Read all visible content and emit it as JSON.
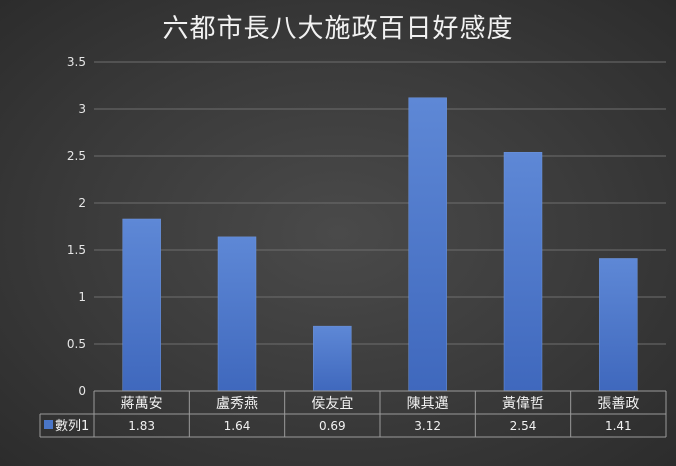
{
  "chart_data": {
    "type": "bar",
    "title": "六都市長八大施政百日好感度",
    "categories": [
      "蔣萬安",
      "盧秀燕",
      "侯友宜",
      "陳其邁",
      "黃偉哲",
      "張善政"
    ],
    "series": [
      {
        "name": "數列1",
        "values": [
          1.83,
          1.64,
          0.69,
          3.12,
          2.54,
          1.41
        ]
      }
    ],
    "value_labels": [
      "1.83",
      "1.64",
      "0.69",
      "3.12",
      "2.54",
      "1.41"
    ],
    "yticks": [
      "0",
      "0.5",
      "1",
      "1.5",
      "2",
      "2.5",
      "3",
      "3.5"
    ],
    "ylim": [
      0,
      3.5
    ],
    "grid": true,
    "legend": "data-table-bottom",
    "colors": {
      "bar": "#4a76c8",
      "bar_light": "#5f8ad8",
      "gridline": "#6e6e6e",
      "text": "#f2f2f2"
    }
  }
}
